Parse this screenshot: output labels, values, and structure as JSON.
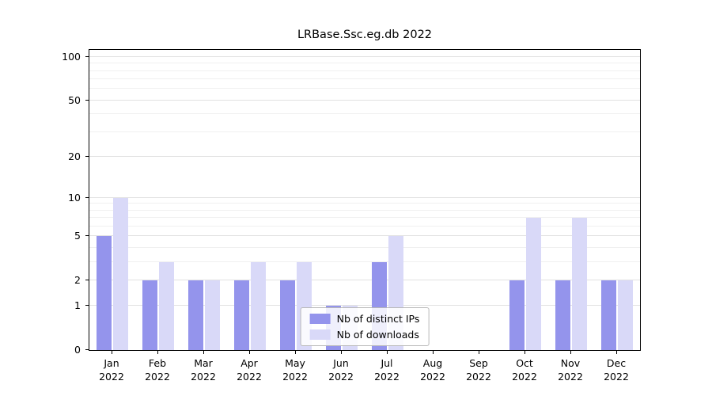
{
  "chart_data": {
    "type": "bar",
    "title": "LRBase.Ssc.eg.db 2022",
    "categories": [
      {
        "month": "Jan",
        "year": "2022"
      },
      {
        "month": "Feb",
        "year": "2022"
      },
      {
        "month": "Mar",
        "year": "2022"
      },
      {
        "month": "Apr",
        "year": "2022"
      },
      {
        "month": "May",
        "year": "2022"
      },
      {
        "month": "Jun",
        "year": "2022"
      },
      {
        "month": "Jul",
        "year": "2022"
      },
      {
        "month": "Aug",
        "year": "2022"
      },
      {
        "month": "Sep",
        "year": "2022"
      },
      {
        "month": "Oct",
        "year": "2022"
      },
      {
        "month": "Nov",
        "year": "2022"
      },
      {
        "month": "Dec",
        "year": "2022"
      }
    ],
    "series": [
      {
        "name": "Nb of distinct IPs",
        "color": "#9494ec",
        "values": [
          5,
          2,
          2,
          2,
          2,
          1,
          3,
          0,
          0,
          2,
          2,
          2
        ]
      },
      {
        "name": "Nb of downloads",
        "color": "#d9d9f8",
        "values": [
          10,
          3,
          2,
          3,
          3,
          1,
          5,
          0,
          0,
          7,
          7,
          2
        ]
      }
    ],
    "yticks": [
      0,
      1,
      2,
      5,
      10,
      20,
      50,
      100
    ],
    "scale": "log1p",
    "ylim": [
      0,
      112
    ],
    "grid": true,
    "legend_position": "bottom-center"
  }
}
